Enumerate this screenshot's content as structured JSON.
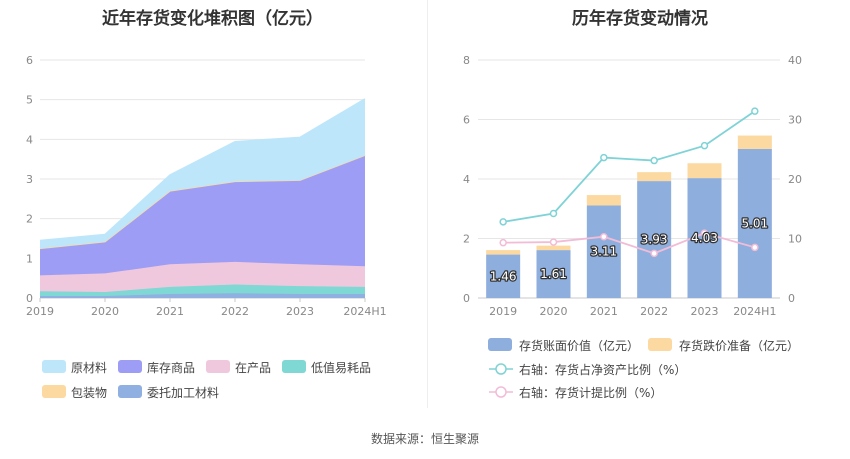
{
  "footer": "数据来源：恒生聚源",
  "chart_data": [
    {
      "type": "area",
      "title": "近年存货变化堆积图（亿元）",
      "x": [
        "2019",
        "2020",
        "2021",
        "2022",
        "2023",
        "2024H1"
      ],
      "ylim": [
        0,
        6
      ],
      "yticks": [
        0,
        1,
        2,
        3,
        4,
        5,
        6
      ],
      "grid": true,
      "legend_position": "bottom",
      "series": [
        {
          "name": "委托加工材料",
          "color": "#8fb0e0",
          "values": [
            0.05,
            0.05,
            0.1,
            0.12,
            0.1,
            0.1
          ]
        },
        {
          "name": "低值易耗品",
          "color": "#7fd8d4",
          "values": [
            0.12,
            0.1,
            0.18,
            0.22,
            0.2,
            0.18
          ]
        },
        {
          "name": "在产品",
          "color": "#f0c8de",
          "values": [
            0.4,
            0.47,
            0.57,
            0.57,
            0.55,
            0.52
          ]
        },
        {
          "name": "库存商品",
          "color": "#9d9df5",
          "values": [
            0.68,
            0.8,
            1.85,
            2.03,
            2.12,
            2.8
          ]
        },
        {
          "name": "包装物",
          "color": "#fcd9a0",
          "values": [
            0,
            0,
            0,
            0,
            0,
            0
          ]
        },
        {
          "name": "原材料",
          "color": "#bde6fb",
          "values": [
            0.2,
            0.18,
            0.4,
            1.0,
            1.08,
            1.42
          ]
        }
      ],
      "legend_order": [
        "原材料",
        "库存商品",
        "在产品",
        "低值易耗品",
        "包装物",
        "委托加工材料"
      ]
    },
    {
      "type": "bar",
      "title": "历年存货变动情况",
      "categories": [
        "2019",
        "2020",
        "2021",
        "2022",
        "2023",
        "2024H1"
      ],
      "ylim_left": [
        0,
        8
      ],
      "yticks_left": [
        0,
        2,
        4,
        6,
        8
      ],
      "ylim_right": [
        0,
        40
      ],
      "yticks_right": [
        0,
        10,
        20,
        30,
        40
      ],
      "legend_position": "bottom",
      "bar_series": [
        {
          "name": "存货账面价值（亿元）",
          "color": "#8eaedd",
          "values": [
            1.46,
            1.61,
            3.11,
            3.93,
            4.03,
            5.01
          ],
          "labels": [
            "1.46",
            "1.61",
            "3.11",
            "3.93",
            "4.03",
            "5.01"
          ]
        },
        {
          "name": "存货跌价准备（亿元）",
          "color": "#fcd9a0",
          "values": [
            0.15,
            0.15,
            0.35,
            0.3,
            0.5,
            0.45
          ]
        }
      ],
      "line_series": [
        {
          "name": "右轴：存货占净资产比例（%）",
          "color": "#7fd3d6",
          "values": [
            12.8,
            14.2,
            23.6,
            23.1,
            25.6,
            31.4
          ]
        },
        {
          "name": "右轴：存货计提比例（%）",
          "color": "#f2bcd6",
          "values": [
            9.3,
            9.4,
            10.3,
            7.5,
            10.9,
            8.5
          ]
        }
      ]
    }
  ]
}
